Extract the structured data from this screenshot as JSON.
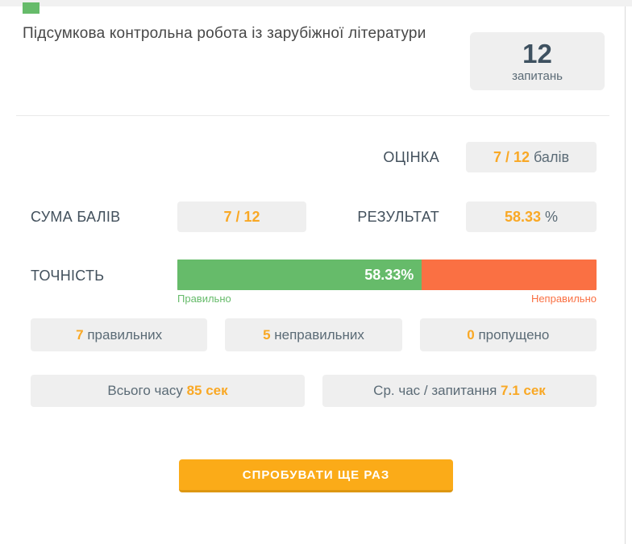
{
  "header": {
    "title": "Підсумкова контрольна робота із зарубіжної літератури",
    "questions_count": "12",
    "questions_label": "запитань"
  },
  "score": {
    "grade_label": "ОЦІНКА",
    "grade_value": "7 / 12",
    "grade_unit": " балів",
    "sum_label": "СУМА БАЛІВ",
    "sum_value": "7 / 12",
    "result_label": "РЕЗУЛЬТАТ",
    "result_value": "58.33",
    "result_unit": " %"
  },
  "accuracy": {
    "label": "ТОЧНІСТЬ",
    "percent_value": 58.33,
    "percent_text": "58.33%",
    "correct_label": "Правильно",
    "incorrect_label": "Неправильно"
  },
  "stats": [
    {
      "value": "7",
      "label": " правильних"
    },
    {
      "value": "5",
      "label": " неправильних"
    },
    {
      "value": "0",
      "label": " пропущено"
    }
  ],
  "time": [
    {
      "label": "Всього часу ",
      "value": "85 сек"
    },
    {
      "label": "Ср. час / запитання ",
      "value": "7.1 сек"
    }
  ],
  "retry_button_label": "СПРОБУВАТИ ЩЕ РАЗ",
  "colors": {
    "accent_orange": "#f9a825",
    "bar_green": "#66bb6a",
    "bar_orange": "#fa7043",
    "box_bg": "#efefef",
    "button_orange": "#fbab18"
  }
}
